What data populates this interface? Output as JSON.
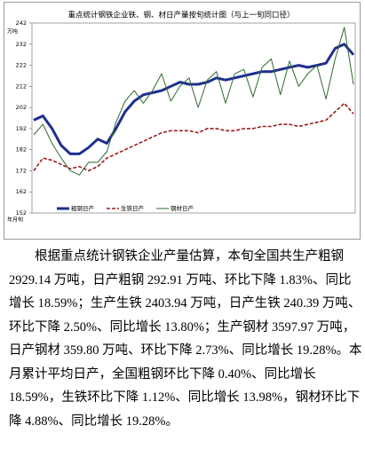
{
  "chart_data": {
    "type": "line",
    "title": "重点统计钢铁企业铁、钢、材日产量按旬统计图（与上一旬同口径）",
    "y_label": "万吨",
    "x_label": "年月旬",
    "ylim": [
      152,
      242
    ],
    "yticks": [
      152,
      162,
      172,
      182,
      192,
      202,
      212,
      222,
      232,
      242
    ],
    "series": [
      {
        "name": "粗钢日产",
        "color": "#1f2f8f",
        "style": "solid",
        "width": 3,
        "values": [
          196,
          198,
          192,
          184,
          180,
          180,
          183,
          187,
          185,
          192,
          200,
          205,
          208,
          209,
          210,
          212,
          214,
          213,
          213,
          214,
          216,
          215,
          216,
          217,
          218,
          219,
          219,
          220,
          221,
          222,
          221,
          222,
          223,
          230,
          232,
          227
        ]
      },
      {
        "name": "生铁日产",
        "color": "#9b1c1c",
        "style": "dashed",
        "width": 1.6,
        "values": [
          172,
          178,
          177,
          175,
          173,
          174,
          172,
          174,
          178,
          180,
          182,
          184,
          186,
          188,
          190,
          191,
          191,
          191,
          190,
          192,
          192,
          191,
          191,
          192,
          192,
          193,
          193,
          194,
          194,
          193,
          194,
          195,
          196,
          200,
          204,
          199
        ]
      },
      {
        "name": "钢材日产",
        "color": "#2e6b2e",
        "style": "solid",
        "width": 1,
        "values": [
          189,
          194,
          185,
          178,
          172,
          170,
          176,
          176,
          181,
          195,
          205,
          210,
          204,
          210,
          218,
          205,
          212,
          216,
          202,
          215,
          219,
          204,
          218,
          220,
          207,
          221,
          225,
          208,
          224,
          212,
          218,
          222,
          206,
          225,
          240,
          213
        ]
      }
    ]
  },
  "paragraph": [
    "根据重点统计钢铁企业产量估算，本旬全国共生产粗钢",
    "2929.14 万吨，日产粗钢 292.91 万吨、环比下降 1.83%、同比",
    "增长 18.59%；生产生铁 2403.94 万吨，日产生铁 240.39 万吨、",
    "环比下降 2.50%、同比增长 13.80%；生产钢材 3597.97 万吨，",
    "日产钢材 359.80 万吨、环比下降 2.73%、同比增长 19.28%。本",
    "月累计平均日产，全国粗钢环比下降 0.40%、同比增长",
    "18.59%，生铁环比下降 1.12%、同比增长 13.98%，钢材环比下",
    "降 4.88%、同比增长 19.28%。"
  ]
}
